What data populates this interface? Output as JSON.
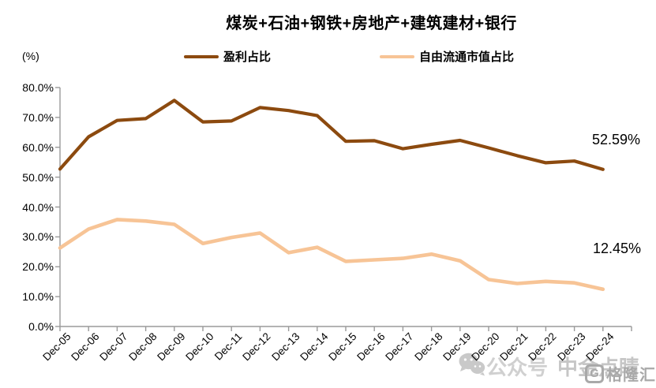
{
  "title": "煤炭+石油+钢铁+房地产+建筑建材+银行",
  "y_axis_unit": "(%)",
  "legend": {
    "series1_label": "盈利占比",
    "series2_label": "自由流通市值占比"
  },
  "end_labels": {
    "series1": "52.59%",
    "series2": "12.45%"
  },
  "colors": {
    "series1": "#8C4A0F",
    "series2": "#F7C496",
    "axis": "#9a9a9a",
    "watermark_light": "#d0d0d0",
    "watermark_mid": "#c6c6c6",
    "watermark_logo": "#a9a9a9"
  },
  "watermark": {
    "wechat_icon": "wechat-icon",
    "prefix": "公众号",
    "account": "中金点睛",
    "logo_glyph": "G",
    "logo_text": "格隆汇"
  },
  "chart_data": {
    "type": "line",
    "title": "煤炭+石油+钢铁+房地产+建筑建材+银行",
    "xlabel": "",
    "ylabel": "(%)",
    "ylim": [
      0,
      80
    ],
    "y_tick_step": 10,
    "y_tick_format": "percent_one_decimal",
    "grid": false,
    "legend_position": "top",
    "categories": [
      "Dec-05",
      "Dec-06",
      "Dec-07",
      "Dec-08",
      "Dec-09",
      "Dec-10",
      "Dec-11",
      "Dec-12",
      "Dec-13",
      "Dec-14",
      "Dec-15",
      "Dec-16",
      "Dec-17",
      "Dec-18",
      "Dec-19",
      "Dec-20",
      "Dec-21",
      "Dec-22",
      "Dec-23",
      "Dec-24"
    ],
    "series": [
      {
        "name": "盈利占比",
        "color": "#8C4A0F",
        "end_label": "52.59%",
        "values": [
          52.7,
          63.5,
          69.0,
          69.6,
          75.7,
          68.5,
          68.8,
          73.3,
          72.3,
          70.6,
          62.0,
          62.2,
          59.5,
          61.0,
          62.3,
          59.8,
          57.2,
          54.8,
          55.4,
          52.59
        ]
      },
      {
        "name": "自由流通市值占比",
        "color": "#F7C496",
        "end_label": "12.45%",
        "values": [
          26.3,
          32.6,
          35.8,
          35.3,
          34.2,
          27.8,
          29.8,
          31.3,
          24.7,
          26.5,
          21.8,
          22.3,
          22.8,
          24.2,
          22.0,
          15.7,
          14.4,
          15.1,
          14.6,
          12.45
        ]
      }
    ]
  }
}
